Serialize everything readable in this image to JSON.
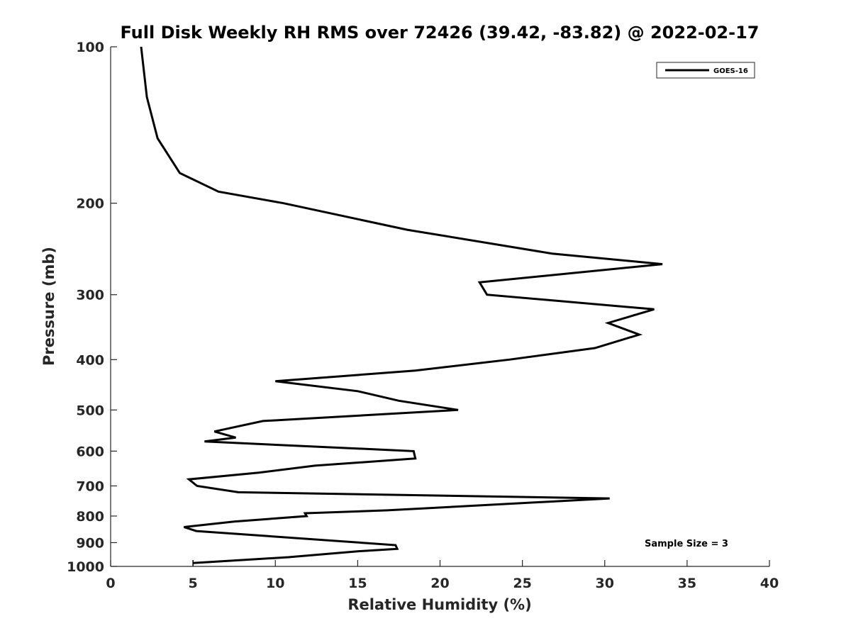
{
  "chart_data": {
    "type": "line",
    "title": "Full Disk Weekly RH RMS over 72426 (39.42, -83.82) @ 2022-02-17",
    "xlabel": "Relative Humidity (%)",
    "ylabel": "Pressure (mb)",
    "xlim": [
      0,
      40
    ],
    "ylim": [
      100,
      1000
    ],
    "y_scale": "log",
    "y_reversed": true,
    "x_ticks": [
      0,
      5,
      10,
      15,
      20,
      25,
      30,
      35,
      40
    ],
    "y_ticks": [
      100,
      200,
      300,
      400,
      500,
      600,
      700,
      800,
      900,
      1000
    ],
    "grid": false,
    "legend_position": "top-right",
    "annotation": "Sample Size = 3",
    "series": [
      {
        "name": "GOES-16",
        "color": "#000000",
        "points": [
          [
            1.85,
            100
          ],
          [
            2.2,
            125
          ],
          [
            2.85,
            150
          ],
          [
            4.2,
            175
          ],
          [
            6.55,
            190
          ],
          [
            10.5,
            200
          ],
          [
            18,
            225
          ],
          [
            26.8,
            250
          ],
          [
            33.5,
            262
          ],
          [
            22.4,
            284
          ],
          [
            22.85,
            300
          ],
          [
            33,
            320
          ],
          [
            30.2,
            340
          ],
          [
            32.1,
            358
          ],
          [
            29.4,
            380
          ],
          [
            24.2,
            400
          ],
          [
            18.5,
            420
          ],
          [
            10,
            440
          ],
          [
            15,
            460
          ],
          [
            17.5,
            480
          ],
          [
            21.1,
            500
          ],
          [
            9.25,
            525
          ],
          [
            6.3,
            550
          ],
          [
            7.6,
            565
          ],
          [
            5.7,
            575
          ],
          [
            18.4,
            600
          ],
          [
            18.5,
            620
          ],
          [
            12.4,
            640
          ],
          [
            9,
            660
          ],
          [
            4.75,
            680
          ],
          [
            5.25,
            700
          ],
          [
            7.75,
            720
          ],
          [
            30.3,
            740
          ],
          [
            16.8,
            780
          ],
          [
            11.8,
            790
          ],
          [
            11.9,
            800
          ],
          [
            7.5,
            820
          ],
          [
            4.45,
            840
          ],
          [
            5.2,
            855
          ],
          [
            17.3,
            910
          ],
          [
            17.4,
            925
          ],
          [
            15.05,
            935
          ],
          [
            10.8,
            960
          ],
          [
            5,
            985
          ]
        ]
      }
    ]
  }
}
